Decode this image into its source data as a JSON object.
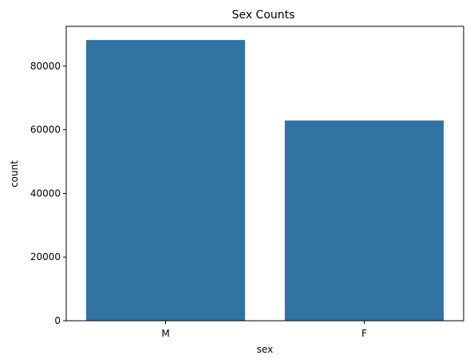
{
  "chart_data": {
    "type": "bar",
    "title": "Sex Counts",
    "xlabel": "sex",
    "ylabel": "count",
    "categories": [
      "M",
      "F"
    ],
    "values": [
      88200,
      62900
    ],
    "ylim": [
      0,
      92500
    ],
    "yticks": [
      0,
      20000,
      40000,
      60000,
      80000
    ],
    "ytick_labels": [
      "0",
      "20000",
      "40000",
      "60000",
      "80000"
    ],
    "bar_color": "#3274a1",
    "grid": false,
    "legend": "none"
  }
}
